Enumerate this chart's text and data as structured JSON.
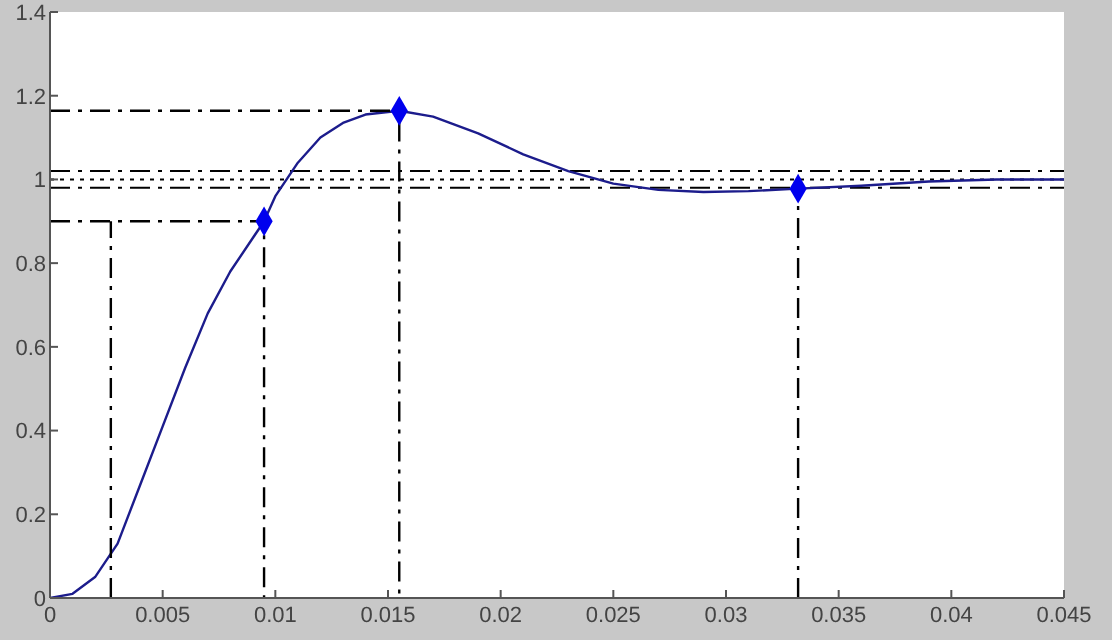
{
  "chart_data": {
    "type": "line",
    "xlim": [
      0,
      0.045
    ],
    "ylim": [
      0,
      1.4
    ],
    "xticks": [
      0,
      0.005,
      0.01,
      0.015,
      0.02,
      0.025,
      0.03,
      0.035,
      0.04,
      0.045
    ],
    "yticks": [
      0,
      0.2,
      0.4,
      0.6,
      0.8,
      1,
      1.2,
      1.4
    ],
    "series": [
      {
        "color": "#1c1c8c",
        "marker": "none",
        "line_style": "solid",
        "x": [
          0,
          0.001,
          0.002,
          0.003,
          0.004,
          0.005,
          0.006,
          0.007,
          0.008,
          0.009,
          0.0095,
          0.01,
          0.011,
          0.012,
          0.013,
          0.014,
          0.0155,
          0.017,
          0.019,
          0.021,
          0.023,
          0.025,
          0.027,
          0.029,
          0.031,
          0.0332,
          0.036,
          0.039,
          0.042,
          0.045
        ],
        "values": [
          0,
          0.01,
          0.05,
          0.13,
          0.27,
          0.41,
          0.55,
          0.68,
          0.78,
          0.86,
          0.9,
          0.96,
          1.04,
          1.1,
          1.135,
          1.155,
          1.164,
          1.15,
          1.11,
          1.06,
          1.02,
          0.99,
          0.975,
          0.97,
          0.972,
          0.978,
          0.985,
          0.995,
          1,
          1
        ]
      },
      {
        "type": "scatter",
        "color": "#0000ee",
        "marker": "diamond",
        "x": [
          0.0095,
          0.0155,
          0.0332
        ],
        "values": [
          0.9,
          1.164,
          0.978
        ]
      },
      {
        "type": "line",
        "color": "#000000",
        "marker": "none",
        "line_style": "dashed",
        "x": [
          0,
          0.0095,
          0.0095
        ],
        "values": [
          0.9,
          0.9,
          0
        ]
      },
      {
        "type": "line",
        "color": "#000000",
        "marker": "none",
        "line_style": "dashed",
        "x": [
          0.0027,
          0.0027
        ],
        "values": [
          0,
          0.9
        ]
      },
      {
        "type": "line",
        "color": "#000000",
        "marker": "none",
        "line_style": "dashed",
        "x": [
          0,
          0.0155,
          0.0155
        ],
        "values": [
          1.164,
          1.164,
          0
        ]
      },
      {
        "type": "line",
        "color": "#000000",
        "marker": "none",
        "line_style": "dashed",
        "x": [
          0.0332,
          0.0332
        ],
        "values": [
          0,
          0.978
        ]
      }
    ],
    "ref_lines": [
      {
        "axis": "y",
        "value": 1.02,
        "color": "#000000",
        "line_style": "dashed"
      },
      {
        "axis": "y",
        "value": 1,
        "color": "#000000",
        "line_style": "dotted"
      },
      {
        "axis": "y",
        "value": 0.98,
        "color": "#000000",
        "line_style": "dashed"
      }
    ]
  }
}
